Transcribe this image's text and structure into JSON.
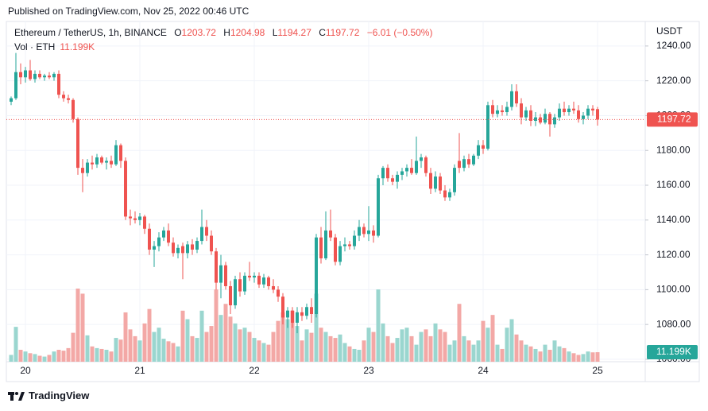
{
  "published": "Published on TradingView.com, Nov 25, 2022 00:46 UTC",
  "footer": {
    "brand": "TradingView"
  },
  "chart_data": {
    "type": "candlestick",
    "title": "Ethereum / TetherUS, 1h, BINANCE",
    "ohlc_letters": {
      "open": "O",
      "high": "H",
      "low": "L",
      "close": "C"
    },
    "change": "−6.01 (−0.50%)",
    "volume_title": "Vol · ETH",
    "volume_last_label": "11.199K",
    "y_unit": "USDT",
    "up_color": "#26a69a",
    "down_color": "#ef5350",
    "volume_up_color": "#9ad6cf",
    "volume_down_color": "#f3a8a6",
    "grid": true,
    "price_line": true,
    "ylim": [
      1058.6,
      1254.1
    ],
    "yticks": [
      {
        "value": 1060,
        "label": "1060.00"
      },
      {
        "value": 1080,
        "label": "1080.00"
      },
      {
        "value": 1100,
        "label": "1100.00"
      },
      {
        "value": 1120,
        "label": "1120.00"
      },
      {
        "value": 1140,
        "label": "1140.00"
      },
      {
        "value": 1160,
        "label": "1160.00"
      },
      {
        "value": 1180,
        "label": "1180.00"
      },
      {
        "value": 1200,
        "label": "1200.00"
      },
      {
        "value": 1220,
        "label": "1220.00"
      },
      {
        "value": 1240,
        "label": "1240.00"
      }
    ],
    "categories": [
      null,
      null,
      null,
      "20",
      null,
      null,
      null,
      null,
      null,
      null,
      null,
      null,
      null,
      null,
      null,
      null,
      null,
      null,
      null,
      null,
      null,
      null,
      null,
      null,
      null,
      null,
      null,
      "21",
      null,
      null,
      null,
      null,
      null,
      null,
      null,
      null,
      null,
      null,
      null,
      null,
      null,
      null,
      null,
      null,
      null,
      null,
      null,
      null,
      null,
      null,
      null,
      "22",
      null,
      null,
      null,
      null,
      null,
      null,
      null,
      null,
      null,
      null,
      null,
      null,
      null,
      null,
      null,
      null,
      null,
      null,
      null,
      null,
      null,
      null,
      null,
      "23",
      null,
      null,
      null,
      null,
      null,
      null,
      null,
      null,
      null,
      null,
      null,
      null,
      null,
      null,
      null,
      null,
      null,
      null,
      null,
      null,
      null,
      null,
      null,
      "24",
      null,
      null,
      null,
      null,
      null,
      null,
      null,
      null,
      null,
      null,
      null,
      null,
      null,
      null,
      null,
      null,
      null,
      null,
      null,
      null,
      null,
      null,
      null,
      "25"
    ],
    "open": [
      1208,
      1210,
      1225,
      1222,
      1226,
      1221,
      1224,
      1222,
      1223,
      1222,
      1224,
      1212,
      1210,
      1209,
      1198,
      1170,
      1167,
      1173,
      1172,
      1176,
      1173,
      1174,
      1172,
      1183,
      1174,
      1142,
      1141,
      1140,
      1142,
      1135,
      1123,
      1125,
      1130,
      1134,
      1127,
      1121,
      1125,
      1121,
      1126,
      1123,
      1128,
      1136,
      1131,
      1122,
      1104,
      1114,
      1102,
      1091,
      1106,
      1099,
      1108,
      1107,
      1108,
      1103,
      1107,
      1102,
      1100,
      1096,
      1084,
      1088,
      1081,
      1087,
      1085,
      1090,
      1086,
      1130,
      1118,
      1134,
      1130,
      1116,
      1125,
      1126,
      1125,
      1131,
      1136,
      1132,
      1134,
      1131,
      1164,
      1170,
      1164,
      1162,
      1166,
      1168,
      1170,
      1167,
      1174,
      1176,
      1167,
      1158,
      1165,
      1157,
      1153,
      1156,
      1174,
      1170,
      1175,
      1172,
      1177,
      1183,
      1181,
      1206,
      1201,
      1203,
      1202,
      1205,
      1214,
      1207,
      1199,
      1203,
      1197,
      1199,
      1196,
      1201,
      1195,
      1199,
      1204,
      1202,
      1204,
      1203,
      1198,
      1200,
      1204,
      1203.72
    ],
    "high": [
      1211,
      1236,
      1230,
      1228,
      1232,
      1226,
      1226,
      1224,
      1225,
      1225,
      1226,
      1214,
      1212,
      1210,
      1199,
      1175,
      1175,
      1177,
      1178,
      1177,
      1176,
      1177,
      1186,
      1184,
      1176,
      1146,
      1145,
      1144,
      1143,
      1138,
      1128,
      1133,
      1136,
      1138,
      1130,
      1126,
      1127,
      1128,
      1129,
      1130,
      1146,
      1140,
      1134,
      1124,
      1120,
      1116,
      1105,
      1108,
      1110,
      1110,
      1116,
      1110,
      1110,
      1109,
      1108,
      1106,
      1102,
      1098,
      1090,
      1090,
      1090,
      1090,
      1092,
      1095,
      1132,
      1136,
      1145,
      1146,
      1132,
      1128,
      1130,
      1128,
      1134,
      1140,
      1138,
      1148,
      1137,
      1166,
      1171,
      1172,
      1166,
      1168,
      1170,
      1172,
      1175,
      1188,
      1178,
      1177,
      1170,
      1168,
      1167,
      1160,
      1158,
      1172,
      1190,
      1177,
      1178,
      1178,
      1186,
      1186,
      1208,
      1209,
      1206,
      1206,
      1208,
      1218,
      1218,
      1210,
      1205,
      1206,
      1202,
      1201,
      1204,
      1202,
      1201,
      1207,
      1208,
      1206,
      1208,
      1206,
      1202,
      1206,
      1206,
      1204.98
    ],
    "low": [
      1206,
      1209,
      1218,
      1219,
      1220,
      1219,
      1221,
      1220,
      1221,
      1220,
      1210,
      1208,
      1207,
      1196,
      1166,
      1156,
      1165,
      1169,
      1170,
      1172,
      1169,
      1170,
      1171,
      1170,
      1140,
      1137,
      1138,
      1137,
      1132,
      1120,
      1113,
      1122,
      1128,
      1125,
      1119,
      1118,
      1106,
      1118,
      1120,
      1121,
      1126,
      1128,
      1120,
      1100,
      1095,
      1100,
      1086,
      1089,
      1096,
      1097,
      1105,
      1104,
      1101,
      1101,
      1100,
      1098,
      1093,
      1080,
      1078,
      1078,
      1075,
      1082,
      1083,
      1081,
      1084,
      1115,
      1117,
      1128,
      1114,
      1114,
      1122,
      1123,
      1123,
      1128,
      1130,
      1128,
      1127,
      1130,
      1160,
      1162,
      1160,
      1158,
      1163,
      1165,
      1166,
      1166,
      1170,
      1165,
      1155,
      1156,
      1155,
      1151,
      1151,
      1154,
      1167,
      1168,
      1170,
      1171,
      1175,
      1178,
      1180,
      1199,
      1199,
      1200,
      1200,
      1203,
      1205,
      1195,
      1197,
      1194,
      1194,
      1195,
      1195,
      1188,
      1193,
      1197,
      1200,
      1200,
      1201,
      1196,
      1195,
      1198,
      1200,
      1194.27
    ],
    "close": [
      1210,
      1225,
      1222,
      1226,
      1221,
      1224,
      1222,
      1223,
      1222,
      1224,
      1212,
      1210,
      1209,
      1198,
      1170,
      1167,
      1173,
      1172,
      1176,
      1173,
      1174,
      1172,
      1183,
      1174,
      1142,
      1141,
      1140,
      1142,
      1135,
      1123,
      1125,
      1130,
      1134,
      1127,
      1121,
      1124,
      1121,
      1126,
      1123,
      1128,
      1136,
      1131,
      1122,
      1104,
      1114,
      1102,
      1091,
      1106,
      1099,
      1108,
      1107,
      1108,
      1103,
      1107,
      1102,
      1100,
      1096,
      1084,
      1088,
      1081,
      1087,
      1085,
      1090,
      1086,
      1130,
      1118,
      1134,
      1130,
      1116,
      1125,
      1126,
      1125,
      1131,
      1136,
      1132,
      1134,
      1131,
      1164,
      1170,
      1164,
      1162,
      1166,
      1168,
      1170,
      1167,
      1174,
      1176,
      1167,
      1158,
      1165,
      1157,
      1153,
      1156,
      1170,
      1170,
      1175,
      1172,
      1177,
      1183,
      1181,
      1206,
      1201,
      1203,
      1202,
      1205,
      1214,
      1207,
      1199,
      1203,
      1197,
      1199,
      1196,
      1201,
      1195,
      1199,
      1204,
      1202,
      1204,
      1203,
      1198,
      1200,
      1204,
      1203,
      1197.72
    ],
    "volume": [
      8000,
      41000,
      14000,
      12000,
      10000,
      9000,
      7000,
      6000,
      8000,
      12000,
      14000,
      13000,
      16000,
      34000,
      86000,
      80000,
      31000,
      18000,
      16000,
      15000,
      14000,
      12000,
      28000,
      26000,
      58000,
      38000,
      30000,
      25000,
      45000,
      62000,
      35000,
      40000,
      27000,
      24000,
      22000,
      18000,
      60000,
      50000,
      30000,
      28000,
      60000,
      35000,
      42000,
      85000,
      55000,
      68000,
      53000,
      45000,
      38000,
      40000,
      35000,
      28000,
      25000,
      22000,
      20000,
      35000,
      48000,
      58000,
      50000,
      60000,
      42000,
      25000,
      38000,
      34000,
      80000,
      40000,
      35000,
      30000,
      28000,
      32000,
      22000,
      18000,
      15000,
      14000,
      25000,
      40000,
      35000,
      85000,
      45000,
      30000,
      22000,
      28000,
      38000,
      40000,
      30000,
      20000,
      35000,
      38000,
      30000,
      45000,
      38000,
      35000,
      20000,
      25000,
      68000,
      30000,
      25000,
      20000,
      25000,
      48000,
      40000,
      55000,
      20000,
      15000,
      40000,
      50000,
      32000,
      25000,
      20000,
      18000,
      15000,
      12000,
      20000,
      14000,
      25000,
      18000,
      16000,
      12000,
      10000,
      8000,
      9000,
      12000,
      11000,
      11199
    ]
  }
}
